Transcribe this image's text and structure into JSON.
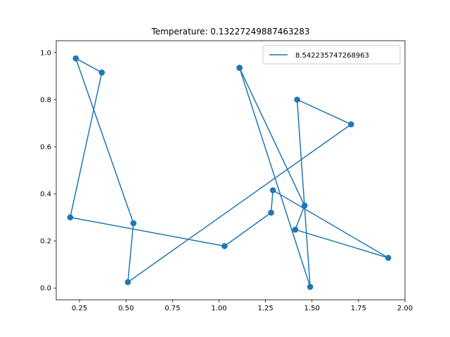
{
  "chart_data": {
    "type": "line",
    "title": "Temperature: 0.13227249887463283",
    "xlabel": "",
    "ylabel": "",
    "xlim": [
      0.125,
      2.0
    ],
    "ylim": [
      -0.05,
      1.05
    ],
    "x_ticks": [
      "0.25",
      "0.50",
      "0.75",
      "1.00",
      "1.25",
      "1.50",
      "1.75",
      "2.00"
    ],
    "y_ticks": [
      "0.0",
      "0.2",
      "0.4",
      "0.6",
      "0.8",
      "1.0"
    ],
    "legend_position": "top-right",
    "grid": false,
    "series": [
      {
        "name": "8.542235747268963",
        "color": "#1f77b4",
        "marker": "circle",
        "points": [
          {
            "x": 1.11,
            "y": 0.935
          },
          {
            "x": 1.49,
            "y": 0.005
          },
          {
            "x": 1.42,
            "y": 0.8
          },
          {
            "x": 1.71,
            "y": 0.695
          },
          {
            "x": 0.51,
            "y": 0.025
          },
          {
            "x": 0.54,
            "y": 0.275
          },
          {
            "x": 0.23,
            "y": 0.975
          },
          {
            "x": 0.37,
            "y": 0.915
          },
          {
            "x": 0.2,
            "y": 0.3
          },
          {
            "x": 1.03,
            "y": 0.178
          },
          {
            "x": 1.28,
            "y": 0.32
          },
          {
            "x": 1.29,
            "y": 0.415
          },
          {
            "x": 1.91,
            "y": 0.128
          },
          {
            "x": 1.41,
            "y": 0.248
          },
          {
            "x": 1.46,
            "y": 0.35
          },
          {
            "x": 1.11,
            "y": 0.935
          }
        ]
      }
    ]
  }
}
